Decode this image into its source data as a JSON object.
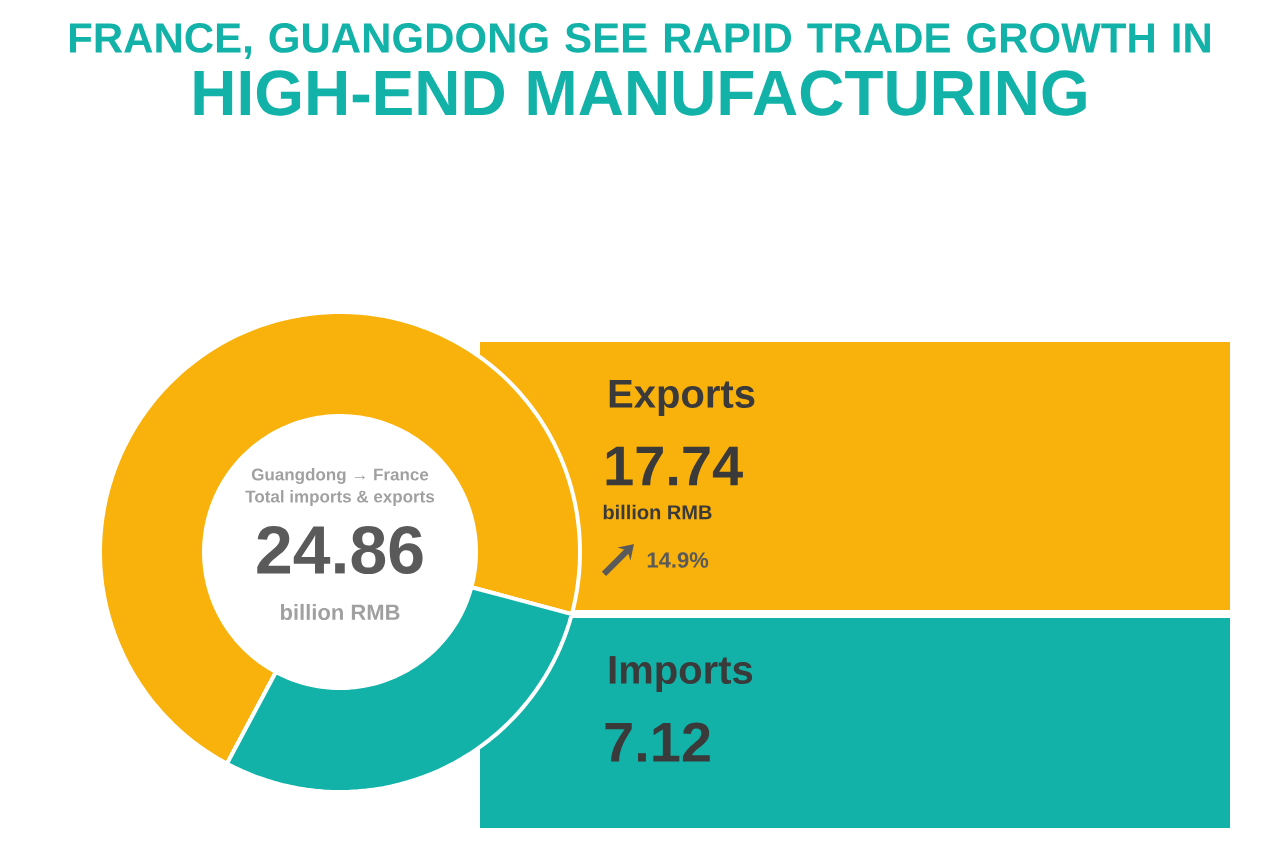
{
  "chart_data": {
    "type": "donut",
    "title": "FRANCE, GUANGDONG SEE RAPID TRADE GROWTH IN",
    "subtitle": "HIGH-END MANUFACTURING",
    "categories": [
      "Exports",
      "Imports"
    ],
    "values": [
      17.74,
      7.12
    ],
    "colors": [
      "#f9b10b",
      "#12b2a8"
    ],
    "value_labels": [
      "17.74",
      "7.12"
    ],
    "annotations": [
      "Guangdong → France",
      "Total imports & exports",
      "24.86",
      "billion RMB",
      "billion RMB",
      "14.9%"
    ]
  }
}
